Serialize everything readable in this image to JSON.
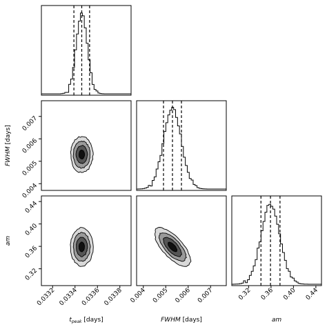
{
  "chart_data": {
    "type": "corner",
    "colors": {
      "frame": "#000000",
      "fill_outer": "#d9d9d9",
      "fill_mid": "#9a9a9a",
      "fill_inner": "#555555",
      "core": "#111111"
    },
    "params": [
      {
        "key": "tpeak",
        "label_main": "t",
        "label_sub": "peak",
        "label_unit": " [days]",
        "range": [
          0.0331,
          0.0339
        ],
        "ticks": [
          0.0332,
          0.0334,
          0.0336,
          0.0338
        ],
        "tick_labels": [
          "0.0332",
          "0.0334",
          "0.0336",
          "0.0338"
        ],
        "quantiles": [
          0.03339,
          0.03346,
          0.03353
        ],
        "mean": 0.03346,
        "sigma": 5e-05
      },
      {
        "key": "fwhm",
        "label_main": "FWHM",
        "label_sub": "",
        "label_unit": " [days]",
        "range": [
          0.0037,
          0.0077
        ],
        "ticks": [
          0.004,
          0.005,
          0.006,
          0.007
        ],
        "tick_labels": [
          "0.004",
          "0.005",
          "0.006",
          "0.007"
        ],
        "quantiles": [
          0.0049,
          0.0053,
          0.0057
        ],
        "mean": 0.0053,
        "sigma": 0.0004
      },
      {
        "key": "amp",
        "label_main": "am",
        "label_sub": "",
        "label_unit": "",
        "range": [
          0.29,
          0.45
        ],
        "ticks": [
          0.32,
          0.36,
          0.4,
          0.44
        ],
        "tick_labels": [
          "0.32",
          "0.36",
          "0.40",
          "0.44"
        ],
        "quantiles": [
          0.342,
          0.359,
          0.376
        ],
        "mean": 0.359,
        "sigma": 0.017
      }
    ],
    "correlations": {
      "fwhm_tpeak": 0.0,
      "amp_tpeak": 0.0,
      "amp_fwhm": -0.7
    },
    "contour_levels_sigma": [
      0.5,
      1.0,
      1.5,
      2.0
    ],
    "grid": false
  }
}
